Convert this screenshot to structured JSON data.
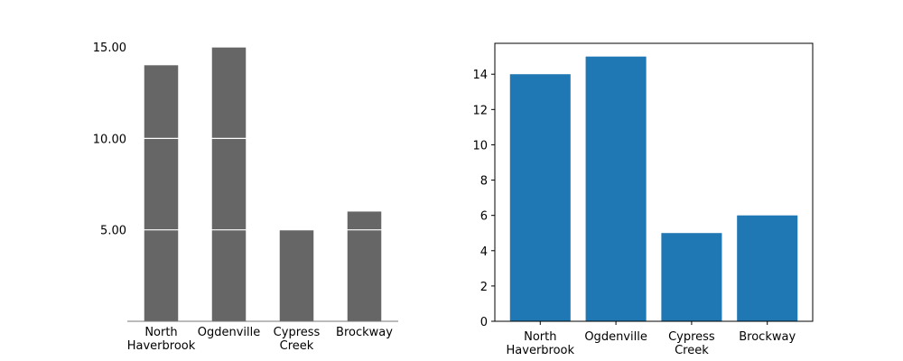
{
  "colors": {
    "left_bar": "#666666",
    "left_gridline": "#ffffff",
    "right_bar": "#1f77b4",
    "axis": "#000000",
    "background": "#ffffff"
  },
  "chart_data": [
    {
      "type": "bar",
      "title": "",
      "xlabel": "",
      "ylabel": "",
      "categories": [
        "North\nHaverbrook",
        "Ogdenville",
        "Cypress\nCreek",
        "Brockway"
      ],
      "values": [
        14,
        15,
        5,
        6
      ],
      "ylim": [
        0,
        15
      ],
      "yticks": [
        5,
        10,
        15
      ],
      "ytick_labels": [
        "5.00",
        "10.00",
        "15.00"
      ],
      "grid": "horizontal white lines drawn across the bars at each y tick",
      "frame": "no box; only a bottom baseline"
    },
    {
      "type": "bar",
      "title": "",
      "xlabel": "",
      "ylabel": "",
      "categories": [
        "North\nHaverbrook",
        "Ogdenville",
        "Cypress\nCreek",
        "Brockway"
      ],
      "values": [
        14,
        15,
        5,
        6
      ],
      "ylim": [
        0,
        15.75
      ],
      "yticks": [
        0,
        2,
        4,
        6,
        8,
        10,
        12,
        14
      ],
      "ytick_labels": [
        "0",
        "2",
        "4",
        "6",
        "8",
        "10",
        "12",
        "14"
      ],
      "grid": false,
      "frame": "full box"
    }
  ]
}
